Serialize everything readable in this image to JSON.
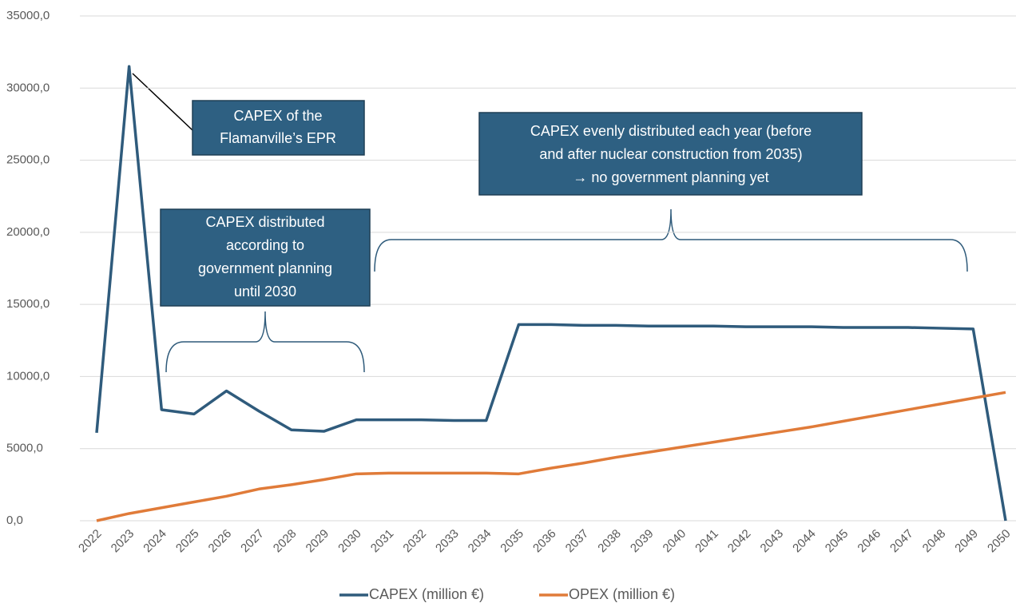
{
  "chart_data": {
    "type": "line",
    "categories": [
      "2022",
      "2023",
      "2024",
      "2025",
      "2026",
      "2027",
      "2028",
      "2029",
      "2030",
      "2031",
      "2032",
      "2033",
      "2034",
      "2035",
      "2036",
      "2037",
      "2038",
      "2039",
      "2040",
      "2041",
      "2042",
      "2043",
      "2044",
      "2045",
      "2046",
      "2047",
      "2048",
      "2049",
      "2050"
    ],
    "series": [
      {
        "name": "CAPEX (million €)",
        "color": "#2f5b7c",
        "values": [
          6100,
          31500,
          7700,
          7400,
          9000,
          7600,
          6300,
          6200,
          7000,
          7000,
          7000,
          6950,
          6950,
          13600,
          13600,
          13550,
          13550,
          13500,
          13500,
          13500,
          13450,
          13450,
          13450,
          13400,
          13400,
          13400,
          13350,
          13300,
          0
        ]
      },
      {
        "name": "OPEX (million €)",
        "color": "#e07b39",
        "values": [
          0,
          500,
          900,
          1300,
          1700,
          2200,
          2500,
          2850,
          3250,
          3300,
          3300,
          3300,
          3300,
          3250,
          3650,
          4000,
          4400,
          4750,
          5100,
          5450,
          5800,
          6150,
          6500,
          6900,
          7300,
          7700,
          8100,
          8500,
          8900
        ]
      }
    ],
    "ylim": [
      0,
      35000
    ],
    "yticks": [
      {
        "value": 0,
        "label": "0,0"
      },
      {
        "value": 5000,
        "label": "5000,0"
      },
      {
        "value": 10000,
        "label": "10000,0"
      },
      {
        "value": 15000,
        "label": "15000,0"
      },
      {
        "value": 20000,
        "label": "20000,0"
      },
      {
        "value": 25000,
        "label": "25000,0"
      },
      {
        "value": 30000,
        "label": "30000,0"
      },
      {
        "value": 35000,
        "label": "35000,0"
      }
    ],
    "grid": true,
    "legend": "bottom",
    "annotations": [
      {
        "lines": [
          "CAPEX of the",
          "Flamanville’s EPR"
        ]
      },
      {
        "lines": [
          "CAPEX evenly distributed each year (before",
          "and after nuclear construction from 2035)",
          "→ no government planning yet"
        ]
      },
      {
        "lines": [
          "CAPEX distributed",
          "according to",
          "government planning",
          "until 2030"
        ]
      }
    ]
  }
}
